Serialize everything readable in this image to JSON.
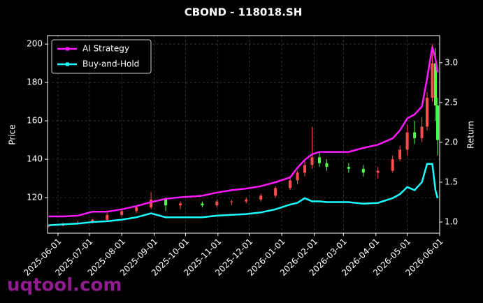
{
  "chart_data": {
    "type": "candlestick",
    "title": "CBOND - 118018.SH",
    "ylabel": "Price",
    "y2label": "Return",
    "x": [
      "2025-05-23",
      "2025-06-06",
      "2025-06-20",
      "2025-07-04",
      "2025-07-18",
      "2025-08-01",
      "2025-08-15",
      "2025-08-29",
      "2025-09-12",
      "2025-09-26",
      "2025-10-17",
      "2025-10-31",
      "2025-11-14",
      "2025-11-28",
      "2025-12-12",
      "2025-12-26",
      "2026-01-09",
      "2026-01-16",
      "2026-01-23",
      "2026-01-30",
      "2026-02-06",
      "2026-02-13",
      "2026-03-06",
      "2026-03-20",
      "2026-04-03",
      "2026-04-17",
      "2026-04-24",
      "2026-05-01",
      "2026-05-08",
      "2026-05-15",
      "2026-05-20",
      "2026-05-25",
      "2026-05-28",
      "2026-05-30"
    ],
    "open": [
      105,
      105.5,
      106.5,
      107,
      108.5,
      111,
      113,
      115,
      119,
      116,
      117,
      116,
      118,
      118,
      119,
      121,
      125,
      129,
      133,
      137,
      141,
      138,
      136,
      135,
      133,
      134,
      140,
      145,
      154,
      151,
      157,
      172,
      190,
      168
    ],
    "high": [
      106,
      107,
      108,
      109,
      112,
      114,
      116,
      123,
      120,
      118,
      118,
      119,
      119,
      120,
      122,
      126,
      131,
      134,
      139,
      157,
      144,
      140,
      138,
      137,
      136,
      142,
      147,
      158,
      160,
      162,
      175,
      200,
      198,
      172
    ],
    "low": [
      104.5,
      105,
      106,
      106.5,
      108,
      110,
      112,
      114,
      113,
      114,
      115,
      115,
      116,
      117,
      118,
      120,
      124,
      127,
      131,
      135,
      136,
      134,
      133,
      131,
      130,
      133,
      139,
      142,
      148,
      149,
      155,
      170,
      160,
      142
    ],
    "close": [
      105.5,
      106.5,
      107,
      108.5,
      111,
      113,
      115,
      119,
      116,
      117,
      116,
      118,
      118,
      119,
      121,
      125,
      129,
      133,
      137,
      141,
      138,
      136,
      135,
      133,
      134,
      140,
      145,
      154,
      151,
      157,
      172,
      190,
      168,
      150
    ],
    "up_color": "#ff4d4d",
    "down_color": "#4dff4d",
    "series": [
      {
        "name": "AI Strategy",
        "color": "#ff1aff",
        "axis": "y2",
        "values": [
          1.07,
          1.07,
          1.08,
          1.13,
          1.13,
          1.16,
          1.2,
          1.25,
          1.29,
          1.31,
          1.33,
          1.37,
          1.4,
          1.42,
          1.45,
          1.5,
          1.56,
          1.68,
          1.78,
          1.85,
          1.88,
          1.88,
          1.88,
          1.93,
          1.97,
          2.05,
          2.15,
          2.3,
          2.35,
          2.45,
          2.8,
          3.2,
          3.05,
          2.88
        ]
      },
      {
        "name": "Buy-and-Hold",
        "color": "#1affff",
        "axis": "y2",
        "values": [
          0.96,
          0.97,
          0.98,
          1.0,
          1.01,
          1.03,
          1.06,
          1.11,
          1.06,
          1.06,
          1.06,
          1.08,
          1.09,
          1.1,
          1.12,
          1.16,
          1.22,
          1.24,
          1.3,
          1.26,
          1.26,
          1.25,
          1.25,
          1.23,
          1.24,
          1.3,
          1.35,
          1.44,
          1.4,
          1.5,
          1.73,
          1.73,
          1.4,
          1.3
        ]
      }
    ],
    "xlim": [
      "2025-05-22",
      "2026-06-01"
    ],
    "xticks": [
      "2025-06-01",
      "2025-07-01",
      "2025-08-01",
      "2025-09-01",
      "2025-10-01",
      "2025-11-01",
      "2025-12-01",
      "2026-01-01",
      "2026-02-01",
      "2026-03-01",
      "2026-04-01",
      "2026-05-01",
      "2026-06-01"
    ],
    "ylim": [
      101.5,
      204.4
    ],
    "yticks": [
      120,
      140,
      160,
      180,
      200
    ],
    "y2lim": [
      0.86,
      3.34
    ],
    "y2ticks": [
      {
        "value": 1,
        "label": "1.0"
      },
      1.5,
      {
        "value": 2,
        "label": "2.0"
      },
      2.5,
      {
        "value": 3,
        "label": "3.0"
      }
    ],
    "grid": true,
    "legend": "upper left"
  },
  "watermark": "uqtool.com"
}
